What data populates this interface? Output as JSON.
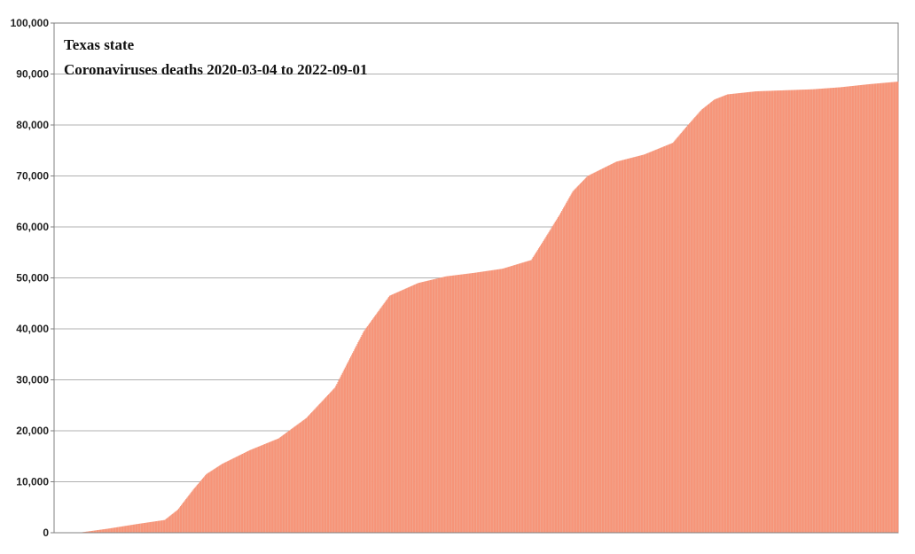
{
  "chart_data": {
    "type": "bar",
    "title": "Texas state",
    "subtitle": "Coronaviruses deaths 2020-03-04 to 2022-09-01",
    "xlabel": "",
    "ylabel": "",
    "x_range": [
      "2020-03-04",
      "2022-09-01"
    ],
    "ylim": [
      0,
      100000
    ],
    "yticks": [
      0,
      10000,
      20000,
      30000,
      40000,
      50000,
      60000,
      70000,
      80000,
      90000,
      100000
    ],
    "ytick_labels": [
      "0",
      "10,000",
      "20,000",
      "30,000",
      "40,000",
      "50,000",
      "60,000",
      "70,000",
      "80,000",
      "90,000",
      "100,000"
    ],
    "grid": true,
    "legend": "none",
    "colors": {
      "bar": "#f79478",
      "bar_edge": "#f2a48c",
      "grid": "#b0b0b0",
      "axis": "#808080"
    },
    "series": [
      {
        "values": [
          [
            "2020-03-04",
            0
          ],
          [
            "2020-04-01",
            50
          ],
          [
            "2020-05-01",
            800
          ],
          [
            "2020-06-01",
            1700
          ],
          [
            "2020-07-01",
            2500
          ],
          [
            "2020-07-15",
            4500
          ],
          [
            "2020-08-01",
            8500
          ],
          [
            "2020-08-15",
            11500
          ],
          [
            "2020-09-01",
            13500
          ],
          [
            "2020-10-01",
            16200
          ],
          [
            "2020-11-01",
            18500
          ],
          [
            "2020-12-01",
            22500
          ],
          [
            "2021-01-01",
            28500
          ],
          [
            "2021-01-15",
            33500
          ],
          [
            "2021-02-01",
            39500
          ],
          [
            "2021-02-15",
            43000
          ],
          [
            "2021-03-01",
            46500
          ],
          [
            "2021-04-01",
            49000
          ],
          [
            "2021-05-01",
            50300
          ],
          [
            "2021-06-01",
            51000
          ],
          [
            "2021-07-01",
            51800
          ],
          [
            "2021-08-01",
            53500
          ],
          [
            "2021-08-15",
            57500
          ],
          [
            "2021-09-01",
            62500
          ],
          [
            "2021-09-15",
            67000
          ],
          [
            "2021-10-01",
            70000
          ],
          [
            "2021-11-01",
            72800
          ],
          [
            "2021-12-01",
            74200
          ],
          [
            "2022-01-01",
            76500
          ],
          [
            "2022-01-15",
            79500
          ],
          [
            "2022-02-01",
            83000
          ],
          [
            "2022-02-15",
            85000
          ],
          [
            "2022-03-01",
            86000
          ],
          [
            "2022-04-01",
            86600
          ],
          [
            "2022-05-01",
            86800
          ],
          [
            "2022-06-01",
            87000
          ],
          [
            "2022-07-01",
            87400
          ],
          [
            "2022-08-01",
            88000
          ],
          [
            "2022-09-01",
            88500
          ]
        ]
      }
    ]
  }
}
